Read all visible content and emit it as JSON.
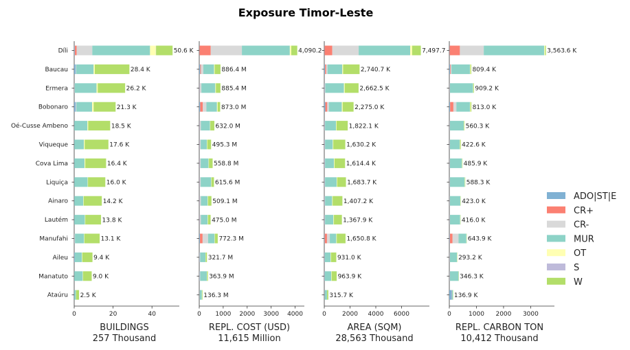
{
  "chart_data": {
    "type": "bar",
    "orientation": "horizontal",
    "stacked": true,
    "title": "Exposure Timor-Leste",
    "categories": [
      "Díli",
      "Baucau",
      "Ermera",
      "Bobonaro",
      "Oé-Cusse Ambeno",
      "Viqueque",
      "Cova Lima",
      "Liquiça",
      "Ainaro",
      "Lautém",
      "Manufahi",
      "Aileu",
      "Manatuto",
      "Ataúru"
    ],
    "legend": {
      "placement": "right",
      "series": [
        {
          "name": "ADO|ST|E",
          "color": "#80b1d3"
        },
        {
          "name": "CR+",
          "color": "#fb8072"
        },
        {
          "name": "CR-",
          "color": "#d9d9d9"
        },
        {
          "name": "MUR",
          "color": "#8dd3c7"
        },
        {
          "name": "OT",
          "color": "#ffffb3"
        },
        {
          "name": "S",
          "color": "#bebada"
        },
        {
          "name": "W",
          "color": "#b3de69"
        }
      ]
    },
    "panels": [
      {
        "xlabel": "BUILDINGS",
        "subtitle": "257 Thousand",
        "xlim": [
          0,
          53
        ],
        "xticks": [
          "0",
          "20",
          "40"
        ],
        "xtick_values": [
          0,
          20,
          40
        ],
        "totals": [
          50.6,
          28.4,
          26.2,
          21.3,
          18.5,
          17.6,
          16.4,
          16.0,
          14.2,
          13.8,
          13.1,
          9.4,
          9.0,
          2.5
        ],
        "labels": [
          "50.6 K",
          "28.4 K",
          "26.2 K",
          "21.3 K",
          "18.5 K",
          "17.6 K",
          "16.4 K",
          "16.0 K",
          "14.2 K",
          "13.8 K",
          "13.1 K",
          "9.4 K",
          "9.0 K",
          "2.5 K"
        ],
        "segments": [
          [
            0.3,
            1.0,
            8.0,
            29.7,
            3.0,
            0.1,
            8.5
          ],
          [
            0.8,
            0,
            0.2,
            9.0,
            0.6,
            0,
            17.8
          ],
          [
            0.1,
            0,
            0.2,
            11.2,
            0.6,
            0,
            14.1
          ],
          [
            0.8,
            0,
            0.3,
            8.1,
            0.8,
            0,
            11.3
          ],
          [
            0.1,
            0,
            0,
            6.7,
            0.4,
            0,
            11.3
          ],
          [
            0.1,
            0,
            0,
            4.9,
            0.4,
            0,
            12.2
          ],
          [
            0.1,
            0,
            0,
            5.2,
            0.4,
            0,
            10.7
          ],
          [
            0.1,
            0,
            0,
            6.8,
            0.2,
            0,
            8.9
          ],
          [
            0.1,
            0,
            0,
            4.6,
            0.2,
            0,
            9.3
          ],
          [
            0.1,
            0,
            0,
            5.4,
            0.2,
            0,
            8.1
          ],
          [
            0.1,
            0,
            0.3,
            4.7,
            0.2,
            0,
            7.8
          ],
          [
            0.3,
            0,
            0,
            3.7,
            0.2,
            0,
            5.2
          ],
          [
            0.1,
            0,
            0,
            4.3,
            0.2,
            0,
            4.4
          ],
          [
            0.1,
            0,
            0,
            0.8,
            0.1,
            0,
            1.5
          ]
        ]
      },
      {
        "xlabel": "REPL. COST (USD)",
        "subtitle": "11,615 Million",
        "xlim": [
          0,
          4300
        ],
        "xticks": [
          "0",
          "1000",
          "2000",
          "3000",
          "4000"
        ],
        "xtick_values": [
          0,
          1000,
          2000,
          3000,
          4000
        ],
        "totals": [
          4090.2,
          886.4,
          885.4,
          873.0,
          632.0,
          495.3,
          558.8,
          615.6,
          509.1,
          475.0,
          772.3,
          321.7,
          363.9,
          136.3
        ],
        "labels": [
          "4,090.2",
          "886.4 M",
          "885.4 M",
          "873.0 M",
          "632.0 M",
          "495.3 M",
          "558.8 M",
          "615.6 M",
          "509.1 M",
          "475.0 M",
          "772.3 M",
          "321.7 M",
          "363.9 M",
          "136.3 M"
        ],
        "segments": [
          [
            10,
            470,
            1300,
            2000,
            60,
            0,
            250.2
          ],
          [
            40,
            30,
            100,
            450,
            26,
            0,
            240.4
          ],
          [
            20,
            10,
            60,
            580,
            25,
            0,
            190.4
          ],
          [
            40,
            110,
            150,
            440,
            30,
            0,
            103
          ],
          [
            20,
            10,
            40,
            380,
            12,
            0,
            170
          ],
          [
            20,
            10,
            30,
            260,
            15,
            0,
            160.3
          ],
          [
            20,
            10,
            30,
            330,
            15,
            0,
            153.8
          ],
          [
            20,
            10,
            30,
            440,
            15,
            0,
            100.6
          ],
          [
            20,
            10,
            40,
            280,
            15,
            0,
            144.1
          ],
          [
            20,
            10,
            40,
            280,
            15,
            0,
            110
          ],
          [
            30,
            110,
            230,
            270,
            12,
            0,
            120.3
          ],
          [
            15,
            5,
            20,
            220,
            10,
            0,
            51.7
          ],
          [
            15,
            5,
            20,
            280,
            10,
            0,
            33.9
          ],
          [
            10,
            5,
            5,
            90,
            5,
            0,
            21.3
          ]
        ]
      },
      {
        "xlabel": "AREA (SQM)",
        "subtitle": "28,563 Thousand",
        "xlim": [
          0,
          8000
        ],
        "xticks": [
          "0",
          "2000",
          "4000",
          "6000"
        ],
        "xtick_values": [
          0,
          2000,
          4000,
          6000
        ],
        "totals": [
          7497.7,
          2740.7,
          2662.5,
          2275.0,
          1822.1,
          1630.2,
          1614.4,
          1683.7,
          1407.2,
          1367.9,
          1650.8,
          931.0,
          963.9,
          315.7
        ],
        "labels": [
          "7,497.7",
          "2,740.7 K",
          "2,662.5 K",
          "2,275.0 K",
          "1,822.1 K",
          "1,630.2 K",
          "1,614.4 K",
          "1,683.7 K",
          "1,407.2 K",
          "1,367.9 K",
          "1,650.8 K",
          "931.0 K",
          "963.9 K",
          "315.7 K"
        ],
        "segments": [
          [
            20,
            600,
            2050,
            4000,
            150,
            0,
            677.7
          ],
          [
            60,
            90,
            100,
            1150,
            60,
            0,
            1280.7
          ],
          [
            30,
            10,
            40,
            1450,
            60,
            0,
            1072.5
          ],
          [
            80,
            150,
            130,
            1000,
            70,
            0,
            845
          ],
          [
            30,
            10,
            20,
            850,
            40,
            0,
            872.1
          ],
          [
            30,
            10,
            20,
            600,
            40,
            0,
            930.2
          ],
          [
            30,
            10,
            20,
            700,
            40,
            0,
            814.4
          ],
          [
            30,
            10,
            20,
            900,
            40,
            0,
            683.7
          ],
          [
            30,
            10,
            20,
            550,
            40,
            0,
            757.2
          ],
          [
            30,
            10,
            20,
            650,
            40,
            0,
            617.9
          ],
          [
            30,
            180,
            220,
            500,
            40,
            0,
            680.8
          ],
          [
            30,
            5,
            10,
            450,
            30,
            0,
            406
          ],
          [
            30,
            5,
            10,
            500,
            30,
            0,
            388.9
          ],
          [
            20,
            5,
            5,
            180,
            10,
            0,
            95.7
          ]
        ]
      },
      {
        "xlabel": "REPL. CARBON TON",
        "subtitle": "10,412 Thousand",
        "xlim": [
          0,
          3800
        ],
        "xticks": [
          "0",
          "1000",
          "2000",
          "3000"
        ],
        "xtick_values": [
          0,
          1000,
          2000,
          3000
        ],
        "totals": [
          3563.6,
          809.4,
          909.2,
          813.0,
          560.3,
          422.6,
          485.9,
          588.3,
          423.0,
          416.0,
          643.9,
          293.2,
          346.3,
          136.9
        ],
        "labels": [
          "3,563.6 K",
          "809.4 K",
          "909.2 K",
          "813.0 K",
          "560.3 K",
          "422.6 K",
          "485.9 K",
          "588.3 K",
          "423.0 K",
          "416.0 K",
          "643.9 K",
          "293.2 K",
          "346.3 K",
          "136.9 K"
        ],
        "segments": [
          [
            10,
            380,
            880,
            2230,
            30,
            0,
            33.6
          ],
          [
            30,
            20,
            30,
            680,
            20,
            0,
            29.4
          ],
          [
            10,
            5,
            10,
            850,
            15,
            0,
            19.2
          ],
          [
            30,
            120,
            110,
            500,
            20,
            0,
            33
          ],
          [
            10,
            5,
            10,
            510,
            10,
            0,
            15.3
          ],
          [
            10,
            5,
            10,
            360,
            10,
            0,
            27.6
          ],
          [
            10,
            5,
            10,
            440,
            10,
            0,
            10.9
          ],
          [
            10,
            5,
            10,
            540,
            10,
            0,
            13.3
          ],
          [
            10,
            5,
            10,
            380,
            10,
            0,
            8
          ],
          [
            10,
            5,
            10,
            375,
            10,
            0,
            6
          ],
          [
            20,
            100,
            220,
            290,
            10,
            0,
            3.9
          ],
          [
            10,
            5,
            10,
            260,
            5,
            0,
            3.2
          ],
          [
            10,
            5,
            10,
            315,
            5,
            0,
            1.3
          ],
          [
            90,
            5,
            5,
            35,
            1,
            0,
            0.9
          ]
        ]
      }
    ]
  }
}
